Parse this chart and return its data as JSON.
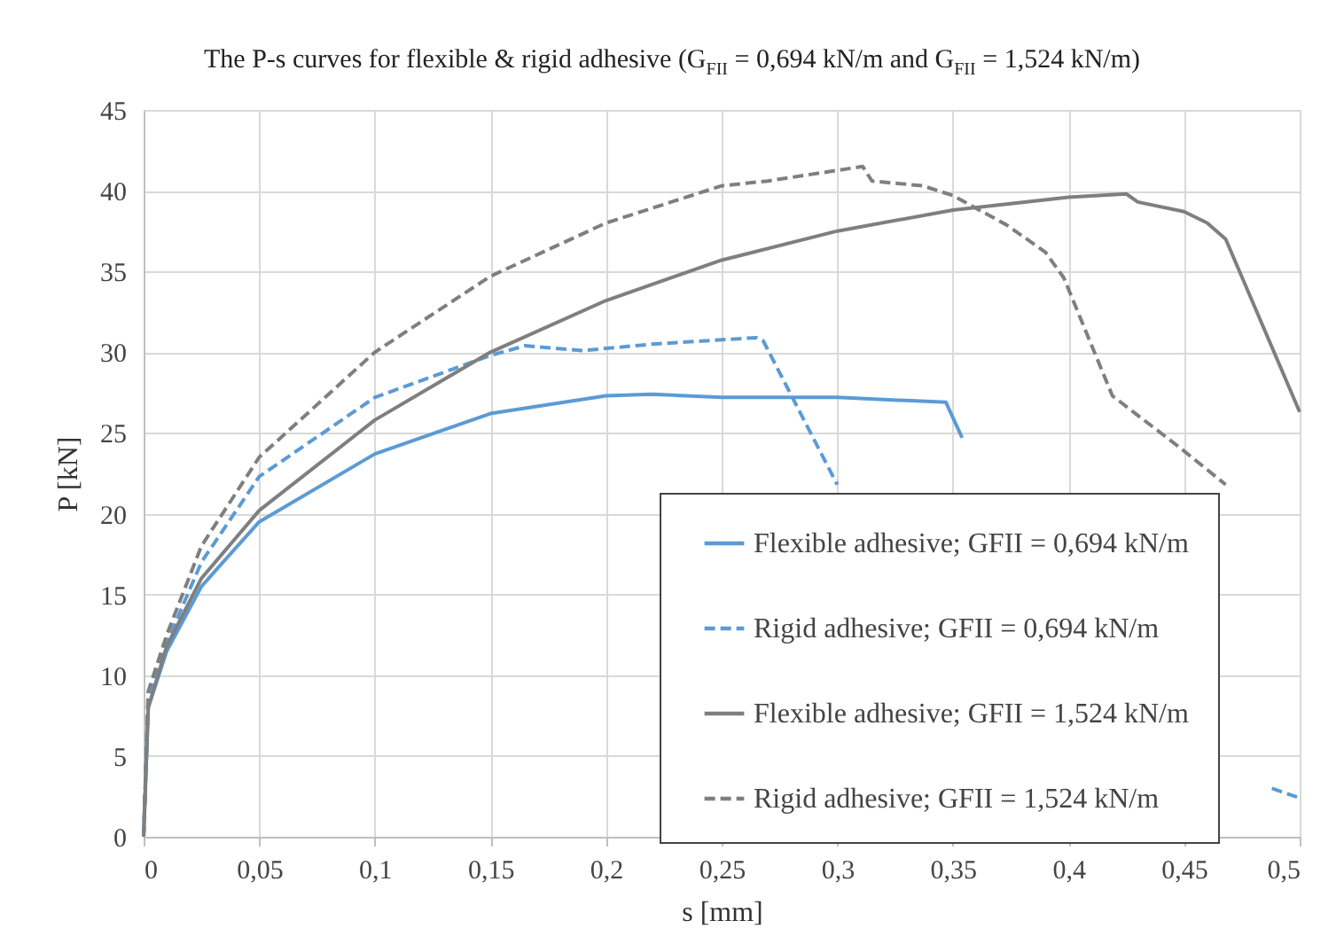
{
  "chart_data": {
    "type": "line",
    "title": "The P-s curves for flexible & rigid adhesive (G$_{FII}$ = 0,694 kN/m and G$_{FII}$ = 1,524 kN/m)",
    "xlabel": "s [mm]",
    "ylabel": "P [kN]",
    "xlim": [
      0,
      0.5
    ],
    "ylim": [
      0,
      45
    ],
    "xticks": [
      0,
      {
        "value": 0.05,
        "label": "0,05"
      },
      {
        "value": 0.1,
        "label": "0,1"
      },
      {
        "value": 0.15,
        "label": "0,15"
      },
      {
        "value": 0.2,
        "label": "0,2"
      },
      {
        "value": 0.25,
        "label": "0,25"
      },
      {
        "value": 0.3,
        "label": "0,3"
      },
      {
        "value": 0.35,
        "label": "0,35"
      },
      {
        "value": 0.4,
        "label": "0,4"
      },
      {
        "value": 0.45,
        "label": "0,45"
      },
      {
        "value": 0.5,
        "label": "0,5"
      }
    ],
    "yticks": [
      0,
      5,
      10,
      15,
      20,
      25,
      30,
      35,
      40,
      45
    ],
    "grid": true,
    "legend": "bottom right",
    "series": [
      {
        "name": "Flexible adhesive; GFII = 0,694 kN/m",
        "color": "#5b9bd5",
        "line_style": "solid",
        "x": [
          0,
          0.002,
          0.01,
          0.025,
          0.05,
          0.1,
          0.15,
          0.2,
          0.22,
          0.25,
          0.3,
          0.347,
          0.354
        ],
        "values": [
          0,
          8,
          11.5,
          15.5,
          19.5,
          23.7,
          26.2,
          27.3,
          27.4,
          27.2,
          27.2,
          26.9,
          24.7
        ]
      },
      {
        "name": "Rigid adhesive; GFII = 0,694 kN/m",
        "color": "#5b9bd5",
        "line_style": "dashed",
        "x": [
          0,
          0.002,
          0.01,
          0.025,
          0.05,
          0.1,
          0.15,
          0.165,
          0.19,
          0.22,
          0.265,
          0.268,
          0.3,
          0.4,
          0.488,
          0.5
        ],
        "values": [
          0,
          8.5,
          12,
          17,
          22.3,
          27.2,
          29.8,
          30.4,
          30.1,
          30.5,
          30.9,
          30.7,
          21.8,
          null,
          3.0,
          2.4
        ]
      },
      {
        "name": "Flexible adhesive; GFII = 1,524 kN/m",
        "color": "#7f7f7f",
        "line_style": "solid",
        "x": [
          0,
          0.002,
          0.01,
          0.025,
          0.05,
          0.1,
          0.15,
          0.2,
          0.25,
          0.3,
          0.35,
          0.4,
          0.425,
          0.43,
          0.45,
          0.46,
          0.468,
          0.5
        ],
        "values": [
          0,
          8,
          11.8,
          16,
          20.2,
          25.8,
          30,
          33.2,
          35.7,
          37.5,
          38.8,
          39.6,
          39.8,
          39.3,
          38.7,
          38,
          37,
          26.3
        ]
      },
      {
        "name": "Rigid adhesive; GFII = 1,524 kN/m",
        "color": "#7f7f7f",
        "line_style": "dashed",
        "x": [
          0,
          0.002,
          0.01,
          0.025,
          0.05,
          0.1,
          0.15,
          0.2,
          0.25,
          0.27,
          0.311,
          0.315,
          0.337,
          0.35,
          0.373,
          0.39,
          0.398,
          0.419,
          0.429,
          0.449,
          0.468
        ],
        "values": [
          0,
          9,
          12.5,
          18,
          23.5,
          30,
          34.7,
          38,
          40.3,
          40.6,
          41.5,
          40.6,
          40.3,
          39.7,
          37.9,
          36.2,
          34.6,
          27.3,
          26.2,
          24,
          21.8
        ]
      }
    ]
  }
}
